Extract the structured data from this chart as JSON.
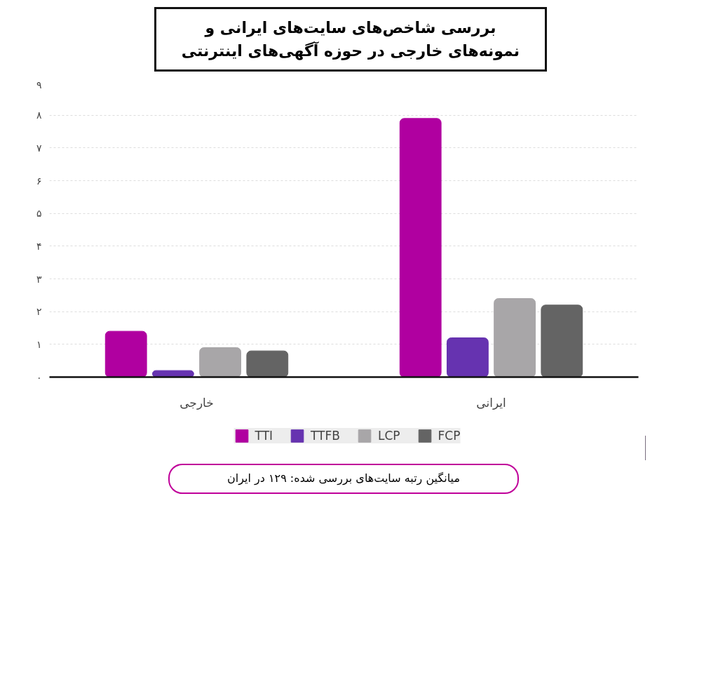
{
  "chart_data": {
    "type": "bar",
    "title": "بررسی شاخص‌های سایت‌های ایرانی و نمونه‌های خارجی در حوزه آگهی‌های اینترنتی",
    "categories": [
      "خارجی",
      "ایرانی"
    ],
    "series": [
      {
        "name": "TTI",
        "color": "#b000a0",
        "values": [
          1.4,
          7.9
        ]
      },
      {
        "name": "TTFB",
        "color": "#6633b0",
        "values": [
          0.2,
          1.2
        ]
      },
      {
        "name": "LCP",
        "color": "#a8a6a8",
        "values": [
          0.9,
          2.4
        ]
      },
      {
        "name": "FCP",
        "color": "#646464",
        "values": [
          0.8,
          2.2
        ]
      }
    ],
    "ylim": [
      0,
      9
    ],
    "yticks": [
      {
        "value": 0,
        "label": "۰"
      },
      {
        "value": 1,
        "label": "۱"
      },
      {
        "value": 2,
        "label": "۲"
      },
      {
        "value": 3,
        "label": "۳"
      },
      {
        "value": 4,
        "label": "۴"
      },
      {
        "value": 5,
        "label": "۵"
      },
      {
        "value": 6,
        "label": "۶"
      },
      {
        "value": 7,
        "label": "۷"
      },
      {
        "value": 8,
        "label": "۸"
      },
      {
        "value": 9,
        "label": "۹"
      }
    ],
    "grid": "y",
    "legend": "bottom",
    "annotations": [
      "میانگین رتبه سایت‌های بررسی شده: ۱۲۹ در ایران"
    ]
  }
}
